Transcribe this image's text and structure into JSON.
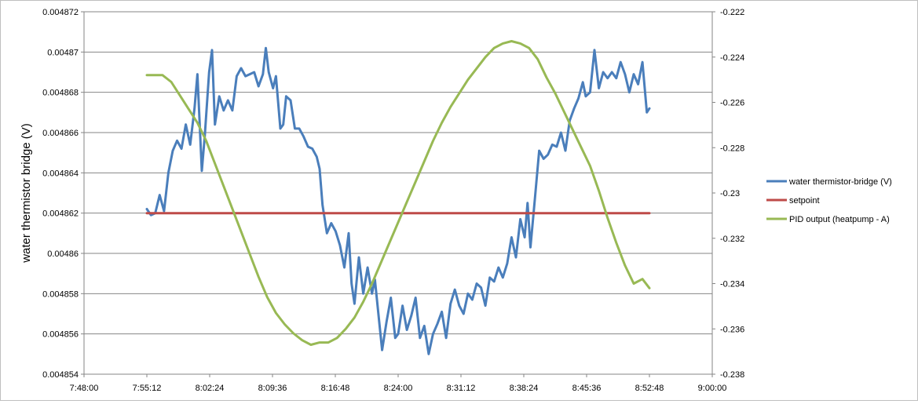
{
  "chart_data": {
    "type": "line",
    "title": "",
    "ylabel": "water thermistor bridge (V)",
    "xlabel": "",
    "x_ticks": [
      "7:48:00",
      "7:55:12",
      "8:02:24",
      "8:09:36",
      "8:16:48",
      "8:24:00",
      "8:31:12",
      "8:38:24",
      "8:45:36",
      "8:52:48",
      "9:00:00"
    ],
    "x_range": [
      "7:48:00",
      "9:00:00"
    ],
    "y_left_ticks": [
      "0.004854",
      "0.004856",
      "0.004858",
      "0.00486",
      "0.004862",
      "0.004864",
      "0.004866",
      "0.004868",
      "0.00487",
      "0.004872"
    ],
    "y_left_range": [
      0.004854,
      0.004872
    ],
    "y_right_ticks": [
      "-0.238",
      "-0.236",
      "-0.234",
      "-0.232",
      "-0.23",
      "-0.228",
      "-0.226",
      "-0.224",
      "-0.222"
    ],
    "y_right_range": [
      -0.238,
      -0.222
    ],
    "grid": true,
    "legend_position": "right",
    "series": [
      {
        "name": "water thermistor-bridge (V)",
        "axis": "left",
        "color": "#4a7ebb",
        "points": [
          [
            "7:55:12",
            0.0048622
          ],
          [
            "7:55:40",
            0.0048619
          ],
          [
            "7:56:10",
            0.004862
          ],
          [
            "7:56:40",
            0.0048629
          ],
          [
            "7:57:10",
            0.0048621
          ],
          [
            "7:57:40",
            0.004864
          ],
          [
            "7:58:10",
            0.0048651
          ],
          [
            "7:58:40",
            0.0048656
          ],
          [
            "7:59:10",
            0.0048652
          ],
          [
            "7:59:40",
            0.0048664
          ],
          [
            "8:00:10",
            0.0048654
          ],
          [
            "8:00:40",
            0.0048672
          ],
          [
            "8:01:00",
            0.0048689
          ],
          [
            "8:01:30",
            0.0048641
          ],
          [
            "8:01:50",
            0.0048658
          ],
          [
            "8:02:20",
            0.004869
          ],
          [
            "8:02:40",
            0.0048701
          ],
          [
            "8:03:00",
            0.0048664
          ],
          [
            "8:03:30",
            0.0048678
          ],
          [
            "8:04:00",
            0.0048671
          ],
          [
            "8:04:30",
            0.0048676
          ],
          [
            "8:05:00",
            0.0048671
          ],
          [
            "8:05:30",
            0.0048688
          ],
          [
            "8:06:00",
            0.0048692
          ],
          [
            "8:06:30",
            0.0048688
          ],
          [
            "8:07:00",
            0.0048689
          ],
          [
            "8:07:30",
            0.004869
          ],
          [
            "8:08:00",
            0.0048683
          ],
          [
            "8:08:30",
            0.0048689
          ],
          [
            "8:08:50",
            0.0048702
          ],
          [
            "8:09:10",
            0.004869
          ],
          [
            "8:09:40",
            0.0048682
          ],
          [
            "8:10:00",
            0.0048688
          ],
          [
            "8:10:30",
            0.0048662
          ],
          [
            "8:10:50",
            0.0048664
          ],
          [
            "8:11:10",
            0.0048678
          ],
          [
            "8:11:40",
            0.0048676
          ],
          [
            "8:12:10",
            0.0048662
          ],
          [
            "8:12:40",
            0.0048662
          ],
          [
            "8:13:10",
            0.0048658
          ],
          [
            "8:13:40",
            0.0048653
          ],
          [
            "8:14:10",
            0.0048652
          ],
          [
            "8:14:40",
            0.0048648
          ],
          [
            "8:15:00",
            0.0048642
          ],
          [
            "8:15:20",
            0.0048624
          ],
          [
            "8:15:50",
            0.004861
          ],
          [
            "8:16:20",
            0.0048615
          ],
          [
            "8:16:50",
            0.0048611
          ],
          [
            "8:17:20",
            0.0048604
          ],
          [
            "8:17:50",
            0.0048593
          ],
          [
            "8:18:20",
            0.004861
          ],
          [
            "8:18:40",
            0.0048585
          ],
          [
            "8:19:00",
            0.0048575
          ],
          [
            "8:19:30",
            0.0048598
          ],
          [
            "8:20:00",
            0.004858
          ],
          [
            "8:20:30",
            0.0048593
          ],
          [
            "8:21:00",
            0.004858
          ],
          [
            "8:21:20",
            0.0048587
          ],
          [
            "8:21:50",
            0.0048566
          ],
          [
            "8:22:10",
            0.0048552
          ],
          [
            "8:22:40",
            0.0048566
          ],
          [
            "8:23:10",
            0.0048578
          ],
          [
            "8:23:40",
            0.0048558
          ],
          [
            "8:24:00",
            0.004856
          ],
          [
            "8:24:30",
            0.0048574
          ],
          [
            "8:25:00",
            0.0048562
          ],
          [
            "8:25:30",
            0.0048569
          ],
          [
            "8:26:00",
            0.0048578
          ],
          [
            "8:26:30",
            0.0048558
          ],
          [
            "8:27:00",
            0.0048564
          ],
          [
            "8:27:30",
            0.004855
          ],
          [
            "8:28:00",
            0.004856
          ],
          [
            "8:28:30",
            0.0048565
          ],
          [
            "8:29:00",
            0.0048571
          ],
          [
            "8:29:30",
            0.0048558
          ],
          [
            "8:30:00",
            0.0048575
          ],
          [
            "8:30:30",
            0.0048582
          ],
          [
            "8:31:00",
            0.0048574
          ],
          [
            "8:31:30",
            0.004857
          ],
          [
            "8:32:00",
            0.004858
          ],
          [
            "8:32:30",
            0.0048577
          ],
          [
            "8:33:00",
            0.0048585
          ],
          [
            "8:33:30",
            0.0048583
          ],
          [
            "8:34:00",
            0.0048574
          ],
          [
            "8:34:30",
            0.0048588
          ],
          [
            "8:35:00",
            0.0048586
          ],
          [
            "8:35:30",
            0.0048593
          ],
          [
            "8:36:00",
            0.0048588
          ],
          [
            "8:36:30",
            0.0048595
          ],
          [
            "8:37:00",
            0.0048608
          ],
          [
            "8:37:30",
            0.0048598
          ],
          [
            "8:38:00",
            0.0048617
          ],
          [
            "8:38:30",
            0.0048608
          ],
          [
            "8:38:50",
            0.0048625
          ],
          [
            "8:39:10",
            0.0048603
          ],
          [
            "8:39:40",
            0.0048627
          ],
          [
            "8:40:10",
            0.0048651
          ],
          [
            "8:40:40",
            0.0048647
          ],
          [
            "8:41:10",
            0.0048649
          ],
          [
            "8:41:40",
            0.0048654
          ],
          [
            "8:42:10",
            0.0048653
          ],
          [
            "8:42:40",
            0.004866
          ],
          [
            "8:43:10",
            0.0048651
          ],
          [
            "8:43:40",
            0.0048666
          ],
          [
            "8:44:10",
            0.0048672
          ],
          [
            "8:44:40",
            0.0048677
          ],
          [
            "8:45:10",
            0.0048685
          ],
          [
            "8:45:30",
            0.0048678
          ],
          [
            "8:46:00",
            0.004868
          ],
          [
            "8:46:30",
            0.0048701
          ],
          [
            "8:47:00",
            0.0048682
          ],
          [
            "8:47:30",
            0.004869
          ],
          [
            "8:48:00",
            0.0048687
          ],
          [
            "8:48:30",
            0.004869
          ],
          [
            "8:49:00",
            0.0048687
          ],
          [
            "8:49:30",
            0.0048695
          ],
          [
            "8:50:00",
            0.0048689
          ],
          [
            "8:50:30",
            0.004868
          ],
          [
            "8:51:00",
            0.0048689
          ],
          [
            "8:51:30",
            0.0048684
          ],
          [
            "8:52:00",
            0.0048695
          ],
          [
            "8:52:30",
            0.004867
          ],
          [
            "8:52:48",
            0.0048672
          ]
        ]
      },
      {
        "name": "setpoint",
        "axis": "left",
        "color": "#be4b48",
        "points": [
          [
            "7:55:12",
            0.004862
          ],
          [
            "8:52:48",
            0.004862
          ]
        ]
      },
      {
        "name": "PID output (heatpump - A)",
        "axis": "right",
        "color": "#98b954",
        "points": [
          [
            "7:55:12",
            -0.2248
          ],
          [
            "7:57:00",
            -0.2248
          ],
          [
            "7:58:00",
            -0.2251
          ],
          [
            "7:59:00",
            -0.2257
          ],
          [
            "8:00:00",
            -0.2263
          ],
          [
            "8:01:00",
            -0.2269
          ],
          [
            "8:02:00",
            -0.2277
          ],
          [
            "8:03:00",
            -0.2287
          ],
          [
            "8:04:00",
            -0.2297
          ],
          [
            "8:05:00",
            -0.2307
          ],
          [
            "8:06:00",
            -0.2317
          ],
          [
            "8:07:00",
            -0.2327
          ],
          [
            "8:08:00",
            -0.2337
          ],
          [
            "8:09:00",
            -0.2346
          ],
          [
            "8:10:00",
            -0.2353
          ],
          [
            "8:11:00",
            -0.2358
          ],
          [
            "8:12:00",
            -0.2362
          ],
          [
            "8:13:00",
            -0.2365
          ],
          [
            "8:14:00",
            -0.2367
          ],
          [
            "8:15:00",
            -0.2366
          ],
          [
            "8:16:00",
            -0.2366
          ],
          [
            "8:17:00",
            -0.2364
          ],
          [
            "8:18:00",
            -0.236
          ],
          [
            "8:19:00",
            -0.2355
          ],
          [
            "8:20:00",
            -0.2348
          ],
          [
            "8:21:00",
            -0.234
          ],
          [
            "8:22:00",
            -0.2331
          ],
          [
            "8:23:00",
            -0.2322
          ],
          [
            "8:24:00",
            -0.2313
          ],
          [
            "8:25:00",
            -0.2304
          ],
          [
            "8:26:00",
            -0.2295
          ],
          [
            "8:27:00",
            -0.2286
          ],
          [
            "8:28:00",
            -0.2277
          ],
          [
            "8:29:00",
            -0.2269
          ],
          [
            "8:30:00",
            -0.2262
          ],
          [
            "8:31:00",
            -0.2256
          ],
          [
            "8:32:00",
            -0.225
          ],
          [
            "8:33:00",
            -0.2245
          ],
          [
            "8:34:00",
            -0.224
          ],
          [
            "8:35:00",
            -0.2236
          ],
          [
            "8:36:00",
            -0.2234
          ],
          [
            "8:37:00",
            -0.2233
          ],
          [
            "8:38:00",
            -0.2234
          ],
          [
            "8:39:00",
            -0.2236
          ],
          [
            "8:40:00",
            -0.2241
          ],
          [
            "8:41:00",
            -0.2249
          ],
          [
            "8:42:00",
            -0.2256
          ],
          [
            "8:43:00",
            -0.2264
          ],
          [
            "8:44:00",
            -0.2272
          ],
          [
            "8:45:00",
            -0.228
          ],
          [
            "8:46:00",
            -0.2288
          ],
          [
            "8:47:00",
            -0.2299
          ],
          [
            "8:48:00",
            -0.2311
          ],
          [
            "8:49:00",
            -0.2322
          ],
          [
            "8:50:00",
            -0.2332
          ],
          [
            "8:51:00",
            -0.234
          ],
          [
            "8:52:00",
            -0.2338
          ],
          [
            "8:52:48",
            -0.2342
          ]
        ]
      }
    ]
  }
}
